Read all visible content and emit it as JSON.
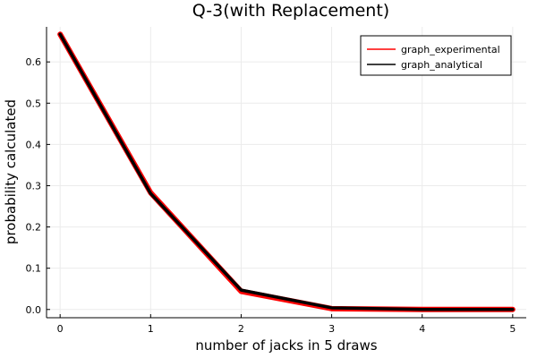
{
  "chart_data": {
    "type": "line",
    "title": "Q-3(with Replacement)",
    "xlabel": "number of jacks in 5 draws",
    "ylabel": "probability calculated",
    "x": [
      0,
      1,
      2,
      3,
      4,
      5
    ],
    "xlim": [
      -0.15,
      5.15
    ],
    "ylim": [
      -0.02,
      0.685
    ],
    "xticks": [
      0,
      1,
      2,
      3,
      4,
      5
    ],
    "yticks": [
      0.0,
      0.1,
      0.2,
      0.3,
      0.4,
      0.5,
      0.6
    ],
    "ytick_labels": [
      "0.0",
      "0.1",
      "0.2",
      "0.3",
      "0.4",
      "0.5",
      "0.6"
    ],
    "grid": true,
    "legend_position": "top-right",
    "series": [
      {
        "name": "graph_experimental",
        "color": "#ff0000",
        "values": [
          0.667,
          0.283,
          0.044,
          0.002,
          0.0,
          0.0
        ]
      },
      {
        "name": "graph_analytical",
        "color": "#000000",
        "values": [
          0.667,
          0.281,
          0.047,
          0.004,
          0.0002,
          4e-06
        ]
      }
    ]
  }
}
